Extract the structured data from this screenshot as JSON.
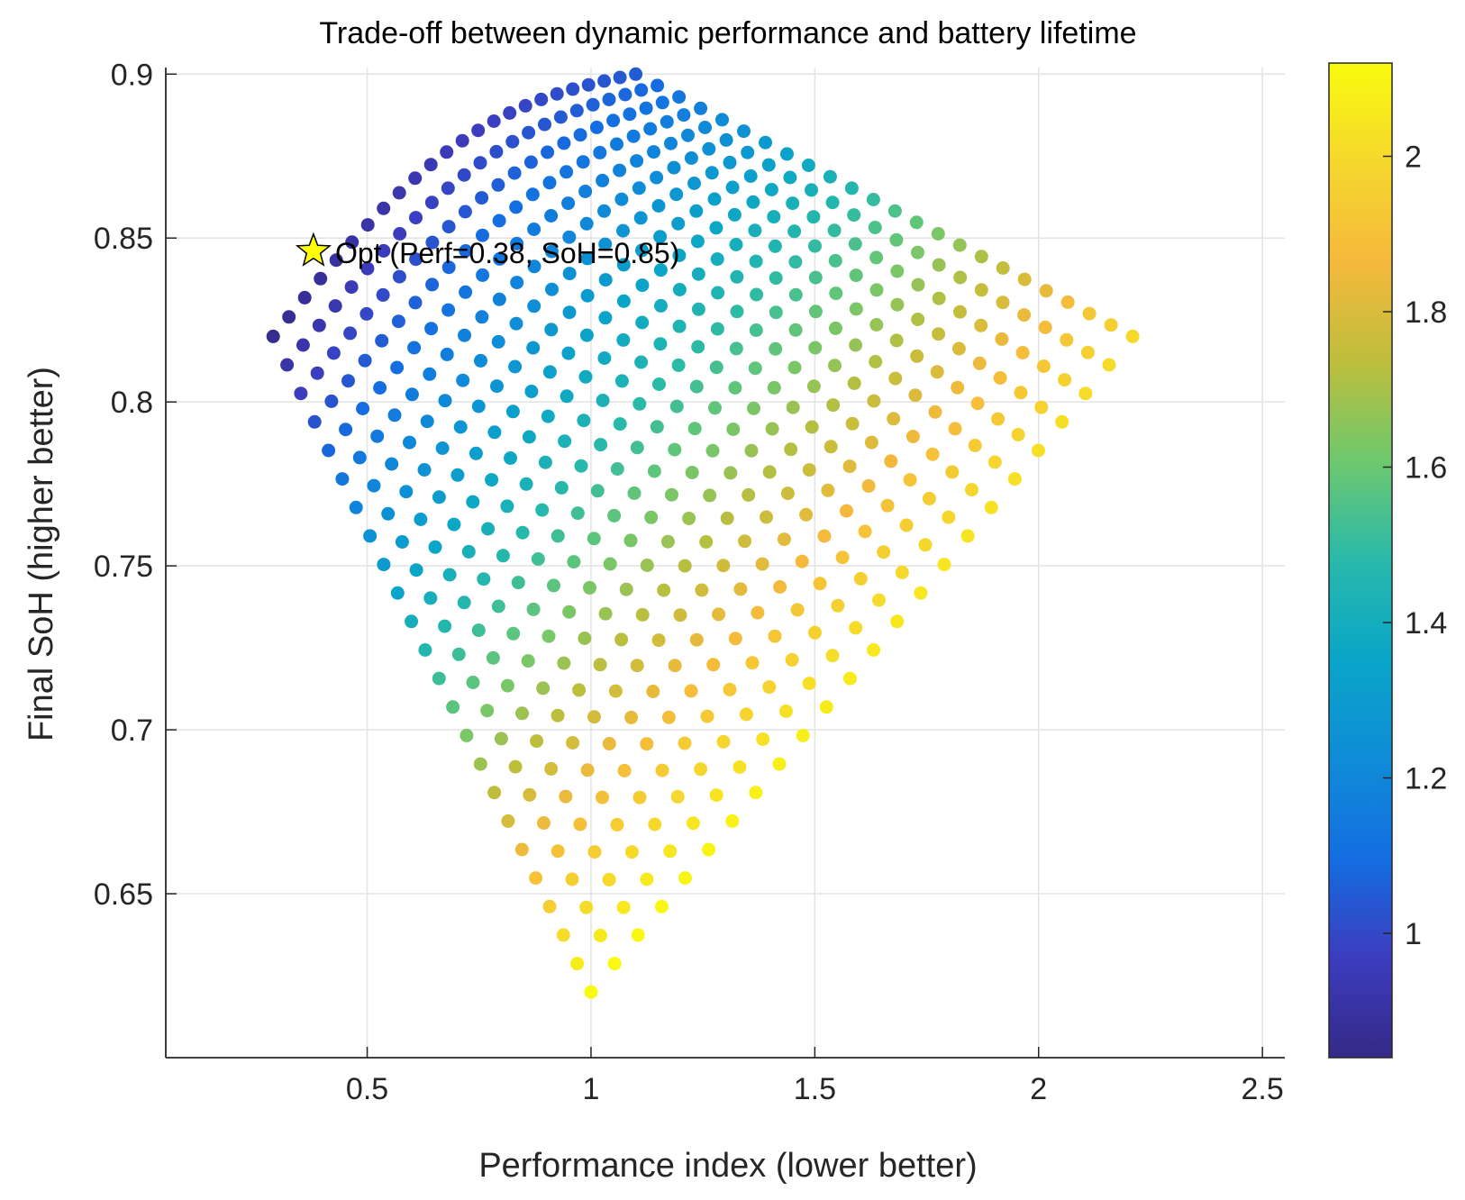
{
  "chart_data": {
    "type": "scatter",
    "title": "Trade-off between dynamic performance and battery lifetime",
    "xlabel": "Performance index (lower better)",
    "ylabel": "Final SoH (higher better)",
    "xlim": [
      0.05,
      2.55
    ],
    "ylim": [
      0.6,
      0.902
    ],
    "xticks": [
      0.5,
      1,
      1.5,
      2,
      2.5
    ],
    "xtick_labels": [
      "0.5",
      "1",
      "1.5",
      "2",
      "2.5"
    ],
    "yticks": [
      0.65,
      0.7,
      0.75,
      0.8,
      0.85,
      0.9
    ],
    "ytick_labels": [
      "0.65",
      "0.7",
      "0.75",
      "0.8",
      "0.85",
      "0.9"
    ],
    "grid": true,
    "colormap": "parula",
    "colorbar": {
      "clim": [
        0.84,
        2.12
      ],
      "ticks": [
        1,
        1.2,
        1.4,
        1.6,
        1.8,
        2
      ],
      "tick_labels": [
        "1",
        "1.2",
        "1.4",
        "1.6",
        "1.8",
        "2"
      ]
    },
    "scatter_grid": {
      "description_of_lattice": "points form a 24 x 24 lattice bounded by four corner points",
      "n_u": 24,
      "n_v": 24,
      "corners": {
        "top": {
          "x": 1.1,
          "y": 0.9,
          "c": 1.05
        },
        "left": {
          "x": 0.29,
          "y": 0.82,
          "c": 0.86
        },
        "right": {
          "x": 2.21,
          "y": 0.82,
          "c": 2.0
        },
        "bottom": {
          "x": 1.0,
          "y": 0.62,
          "c": 2.12
        }
      }
    },
    "optimum": {
      "x": 0.38,
      "y": 0.846,
      "label": "Opt (Perf=0.38, SoH=0.85)",
      "marker": "star",
      "color": "#FFFF00"
    }
  }
}
